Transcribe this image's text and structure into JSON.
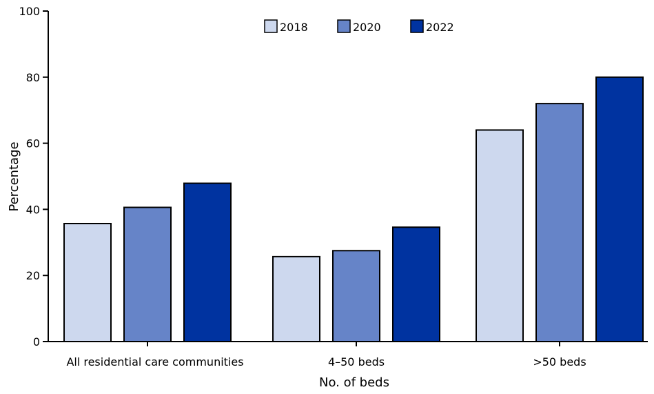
{
  "chart_data": {
    "type": "bar",
    "title": "",
    "xlabel": "No. of beds",
    "ylabel": "Percentage",
    "ylim": [
      0,
      100
    ],
    "yticks": [
      0,
      20,
      40,
      60,
      80,
      100
    ],
    "grid": false,
    "legend_position": "top-center",
    "categories": [
      "All residential care communities",
      "4–50 beds",
      ">50 beds"
    ],
    "series": [
      {
        "name": "2018",
        "color": "#cdd8ee",
        "values": [
          35.7,
          25.7,
          64.0
        ]
      },
      {
        "name": "2020",
        "color": "#6684c8",
        "values": [
          40.6,
          27.5,
          72.0
        ]
      },
      {
        "name": "2022",
        "color": "#0033a0",
        "values": [
          47.9,
          34.6,
          80.0
        ]
      }
    ]
  }
}
